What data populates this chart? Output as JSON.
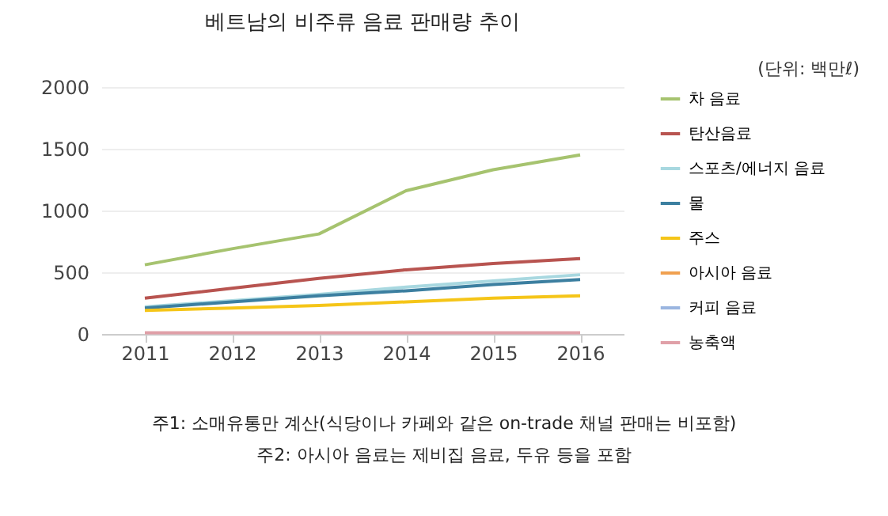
{
  "chart_data": {
    "type": "line",
    "title": "베트남의 비주류 음료 판매량 추이",
    "annotations": [
      "(단위: 백만ℓ)",
      "주1: 소매유통만 계산(식당이나 카페와 같은 on-trade 채널 판매는 비포함)",
      "주2: 아시아 음료는 제비집 음료, 두유 등을 포함"
    ],
    "categories": [
      "2011",
      "2012",
      "2013",
      "2014",
      "2015",
      "2016"
    ],
    "series": [
      {
        "name": "차 음료",
        "color": "#a6c36f",
        "values": [
          560,
          690,
          810,
          1160,
          1330,
          1450
        ]
      },
      {
        "name": "탄산음료",
        "color": "#b85450",
        "values": [
          290,
          370,
          450,
          520,
          570,
          610
        ]
      },
      {
        "name": "스포츠/에너지 음료",
        "color": "#a8d8e0",
        "values": [
          220,
          270,
          320,
          380,
          430,
          480
        ]
      },
      {
        "name": "물",
        "color": "#3c7fa0",
        "values": [
          210,
          260,
          310,
          350,
          400,
          440
        ]
      },
      {
        "name": "주스",
        "color": "#f5c518",
        "values": [
          190,
          210,
          230,
          260,
          290,
          310
        ]
      },
      {
        "name": "아시아 음료",
        "color": "#f0a050",
        "values": [
          null,
          null,
          null,
          null,
          null,
          null
        ]
      },
      {
        "name": "커피 음료",
        "color": "#9ab5e0",
        "values": [
          null,
          null,
          null,
          null,
          null,
          null
        ]
      },
      {
        "name": "농축액",
        "color": "#e0a0a8",
        "values": [
          10,
          10,
          10,
          10,
          10,
          10
        ]
      }
    ],
    "ylim": [
      0,
      2000
    ],
    "yticks": [
      0,
      500,
      1000,
      1500,
      2000
    ],
    "grid": "y",
    "legend": "right"
  }
}
